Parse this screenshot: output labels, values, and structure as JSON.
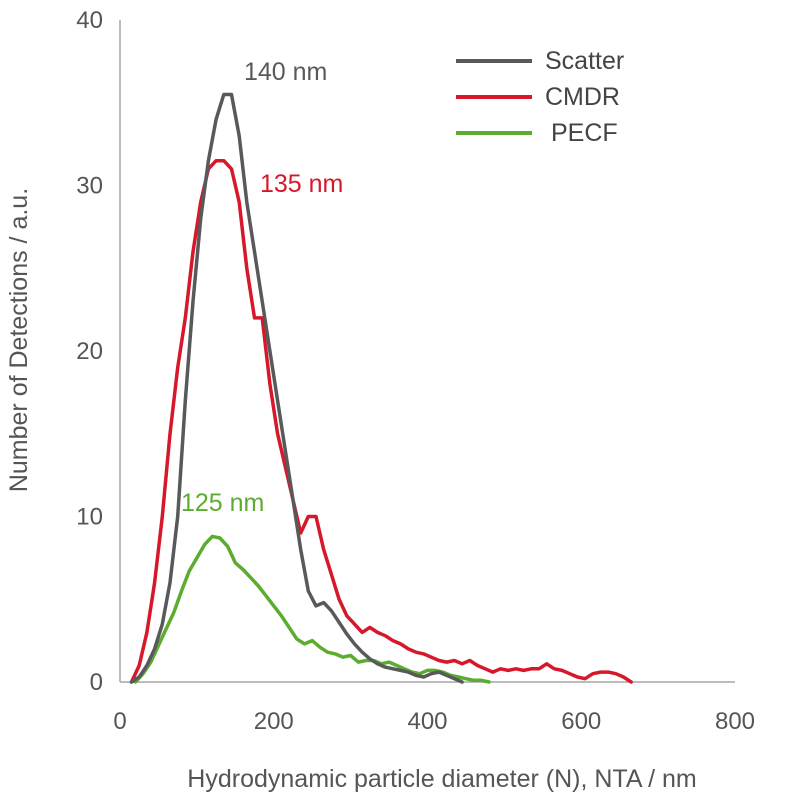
{
  "chart_data": {
    "type": "line",
    "xlabel": "Hydrodynamic particle diameter (N), NTA / nm",
    "ylabel": "Number of Detections / a.u.",
    "xlim": [
      0,
      800
    ],
    "ylim": [
      0,
      40
    ],
    "xticks": [
      "0",
      "200",
      "400",
      "600",
      "800"
    ],
    "yticks": [
      "0",
      "10",
      "20",
      "30",
      "40"
    ],
    "grid": false,
    "legend_position": "top-right",
    "series": [
      {
        "name": "Scatter",
        "color": "#58595b",
        "x": [
          15,
          25,
          35,
          45,
          55,
          65,
          75,
          85,
          95,
          105,
          115,
          125,
          135,
          145,
          155,
          165,
          175,
          185,
          195,
          205,
          215,
          225,
          235,
          245,
          255,
          265,
          275,
          285,
          295,
          305,
          315,
          325,
          335,
          345,
          355,
          365,
          375,
          385,
          395,
          405,
          415,
          425,
          435,
          445
        ],
        "y": [
          0,
          0.3,
          1,
          2,
          3.5,
          6,
          10,
          17,
          23,
          28,
          31.5,
          34,
          35.5,
          35.5,
          33,
          29,
          26,
          23,
          20,
          17,
          14,
          11,
          8,
          5.5,
          4.6,
          4.8,
          4.3,
          3.6,
          2.9,
          2.3,
          1.8,
          1.4,
          1.1,
          0.9,
          0.8,
          0.7,
          0.6,
          0.4,
          0.3,
          0.5,
          0.6,
          0.4,
          0.2,
          0
        ]
      },
      {
        "name": "CMDR",
        "color": "#d7182a",
        "x": [
          15,
          25,
          35,
          45,
          55,
          65,
          75,
          85,
          95,
          105,
          115,
          125,
          135,
          145,
          155,
          165,
          175,
          185,
          195,
          205,
          215,
          225,
          235,
          245,
          255,
          265,
          275,
          285,
          295,
          305,
          315,
          325,
          335,
          345,
          355,
          365,
          375,
          385,
          395,
          405,
          415,
          425,
          435,
          445,
          455,
          465,
          475,
          485,
          495,
          505,
          515,
          525,
          535,
          545,
          555,
          565,
          575,
          585,
          595,
          605,
          615,
          625,
          635,
          645,
          655,
          665
        ],
        "y": [
          0,
          1,
          3,
          6,
          10,
          15,
          19,
          22,
          26,
          29,
          31,
          31.5,
          31.5,
          31,
          29,
          25,
          22,
          22,
          18,
          15,
          13,
          11,
          9,
          10,
          10,
          8,
          6.5,
          5,
          4,
          3.5,
          3,
          3.3,
          3,
          2.8,
          2.5,
          2.3,
          2,
          1.8,
          1.7,
          1.5,
          1.3,
          1.2,
          1.3,
          1.1,
          1.3,
          1,
          0.8,
          0.6,
          0.8,
          0.7,
          0.8,
          0.7,
          0.8,
          0.8,
          1.1,
          0.8,
          0.7,
          0.5,
          0.3,
          0.2,
          0.5,
          0.6,
          0.6,
          0.5,
          0.3,
          0
        ]
      },
      {
        "name": "PECF",
        "color": "#5cac2f",
        "x": [
          20,
          30,
          40,
          50,
          60,
          70,
          80,
          90,
          100,
          110,
          120,
          130,
          140,
          150,
          160,
          170,
          180,
          190,
          200,
          210,
          220,
          230,
          240,
          250,
          260,
          270,
          280,
          290,
          300,
          310,
          320,
          330,
          340,
          350,
          360,
          370,
          380,
          390,
          400,
          410,
          420,
          430,
          440,
          450,
          460,
          470,
          480
        ],
        "y": [
          0,
          0.5,
          1.2,
          2.2,
          3.2,
          4.2,
          5.5,
          6.7,
          7.5,
          8.3,
          8.8,
          8.7,
          8.2,
          7.2,
          6.8,
          6.3,
          5.8,
          5.2,
          4.6,
          4.0,
          3.3,
          2.6,
          2.3,
          2.5,
          2.1,
          1.8,
          1.7,
          1.5,
          1.6,
          1.2,
          1.3,
          1.3,
          1.1,
          1.2,
          1.0,
          0.8,
          0.6,
          0.5,
          0.7,
          0.7,
          0.6,
          0.4,
          0.3,
          0.2,
          0.1,
          0.1,
          0
        ]
      }
    ],
    "annotations": [
      {
        "text": "140 nm",
        "color": "#58595b"
      },
      {
        "text": "135 nm",
        "color": "#d7182a"
      },
      {
        "text": "125 nm",
        "color": "#5cac2f"
      }
    ]
  }
}
